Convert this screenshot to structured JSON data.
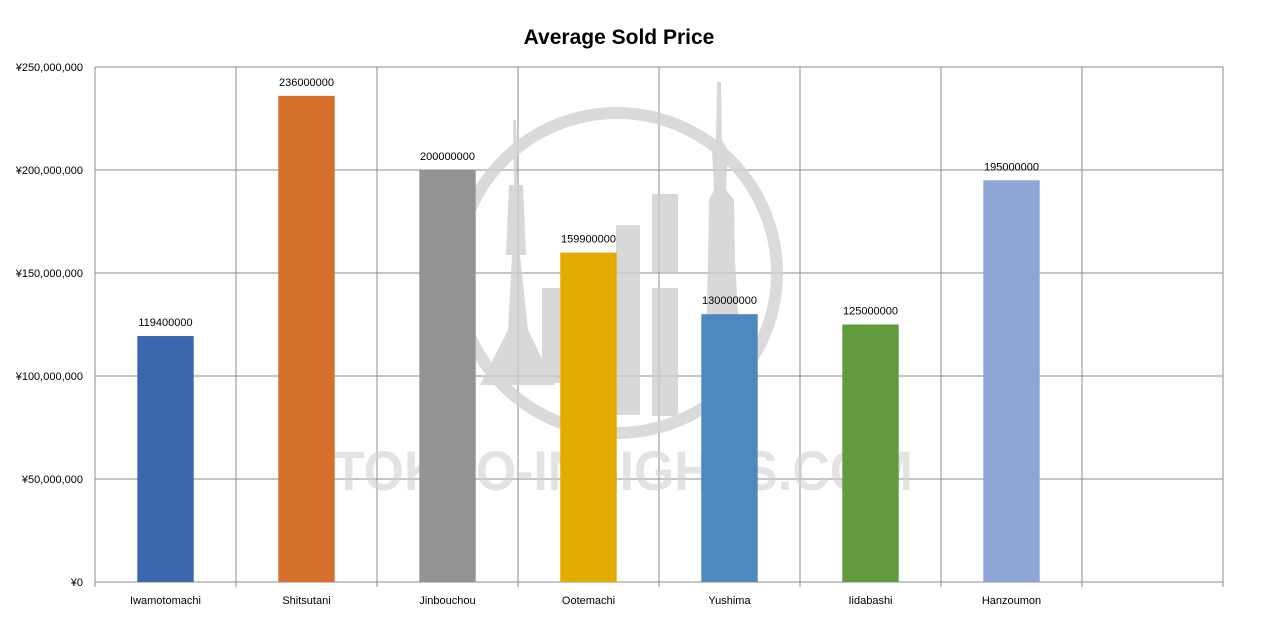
{
  "chart_data": {
    "type": "bar",
    "title": "Average Sold Price",
    "xlabel": "",
    "ylabel": "",
    "categories": [
      "Iwamotomachi",
      "Shitsutani",
      "Jinbouchou",
      "Ootemachi",
      "Yushima",
      "Iidabashi",
      "Hanzoumon"
    ],
    "values": [
      119400000,
      236000000,
      200000000,
      159900000,
      130000000,
      125000000,
      195000000
    ],
    "data_labels": [
      "119400000",
      "236000000",
      "200000000",
      "159900000",
      "130000000",
      "125000000",
      "195000000"
    ],
    "colors": [
      "#3d66ae",
      "#d4702b",
      "#939393",
      "#e3aa00",
      "#4f88c0",
      "#629a3e",
      "#8fa5d5"
    ],
    "ylim": [
      0,
      250000000
    ],
    "yticks": [
      0,
      50000000,
      100000000,
      150000000,
      200000000,
      250000000
    ],
    "ytick_labels": [
      "¥0",
      "¥50,000,000",
      "¥100,000,000",
      "¥150,000,000",
      "¥200,000,000",
      "¥250,000,000"
    ],
    "category_slots": 8,
    "grid": true,
    "legend": "none"
  },
  "watermark": {
    "text": "TOKYO-INSIGHTS.COM",
    "icon": "tokyo-skyline-icon"
  }
}
